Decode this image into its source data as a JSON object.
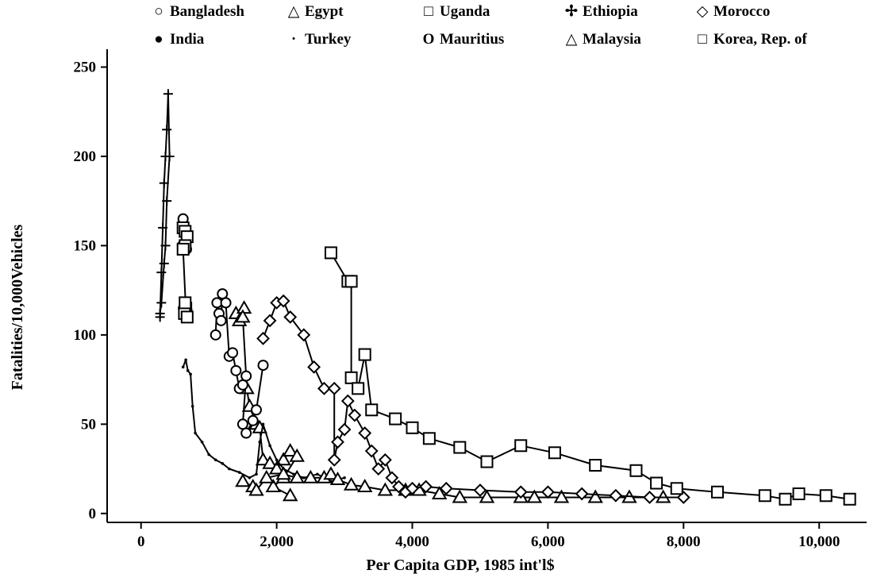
{
  "chart_data": {
    "type": "line",
    "title": "",
    "xlabel": "Per Capita GDP, 1985 int'l$",
    "ylabel": "Fatalities/10,000Vehicles",
    "xlim": [
      -500,
      10700
    ],
    "ylim": [
      -5,
      260
    ],
    "xticks": [
      0,
      2000,
      4000,
      6000,
      8000,
      10000
    ],
    "xtick_labels": [
      "0",
      "2,000",
      "4,000",
      "6,000",
      "8,000",
      "10,000"
    ],
    "yticks": [
      0,
      50,
      100,
      150,
      200,
      250
    ],
    "ytick_labels": [
      "0",
      "50",
      "100",
      "150",
      "200",
      "250"
    ],
    "grid": false,
    "legend_position": "top",
    "series": [
      {
        "name": "Bangladesh",
        "marker": "circle",
        "line": false,
        "points": [
          [
            620,
            165
          ],
          [
            640,
            160
          ],
          [
            660,
            158
          ],
          [
            610,
            150
          ],
          [
            640,
            150
          ],
          [
            670,
            148
          ]
        ]
      },
      {
        "name": "India",
        "marker": "small-circle",
        "line": false,
        "points": [
          [
            600,
            115
          ],
          [
            640,
            114
          ],
          [
            670,
            112
          ],
          [
            630,
            110
          ],
          [
            650,
            112
          ],
          [
            700,
            114
          ],
          [
            620,
            116
          ]
        ]
      },
      {
        "name": "Egypt",
        "marker": "triangle",
        "line": true,
        "points": [
          [
            1400,
            112
          ],
          [
            1450,
            108
          ],
          [
            1520,
            115
          ],
          [
            1500,
            110
          ],
          [
            1560,
            70
          ],
          [
            1600,
            60
          ],
          [
            1700,
            50
          ],
          [
            1750,
            48
          ],
          [
            1800,
            30
          ],
          [
            1900,
            28
          ],
          [
            2000,
            25
          ],
          [
            2100,
            30
          ],
          [
            2200,
            35
          ],
          [
            2300,
            32
          ],
          [
            2100,
            20
          ],
          [
            1950,
            15
          ],
          [
            2200,
            10
          ]
        ]
      },
      {
        "name": "Turkey",
        "marker": "dot",
        "line": true,
        "points": [
          [
            620,
            82
          ],
          [
            660,
            86
          ],
          [
            690,
            80
          ],
          [
            730,
            78
          ],
          [
            760,
            60
          ],
          [
            800,
            45
          ],
          [
            900,
            40
          ],
          [
            1000,
            33
          ],
          [
            1100,
            30
          ],
          [
            1200,
            28
          ],
          [
            1300,
            25
          ],
          [
            1450,
            23
          ],
          [
            1600,
            20
          ],
          [
            1700,
            22
          ],
          [
            1750,
            40
          ],
          [
            1800,
            50
          ],
          [
            1900,
            38
          ],
          [
            2000,
            30
          ],
          [
            2100,
            25
          ],
          [
            2250,
            22
          ],
          [
            2400,
            20
          ],
          [
            2600,
            22
          ],
          [
            2800,
            18
          ],
          [
            3000,
            20
          ]
        ]
      },
      {
        "name": "Uganda",
        "marker": "square",
        "line": true,
        "points": [
          [
            620,
            160
          ],
          [
            650,
            158
          ],
          [
            680,
            155
          ],
          [
            650,
            150
          ],
          [
            620,
            148
          ],
          [
            660,
            115
          ],
          [
            640,
            112
          ],
          [
            680,
            110
          ],
          [
            650,
            118
          ]
        ]
      },
      {
        "name": "Mauritius",
        "marker": "bold-circle",
        "line": true,
        "points": [
          [
            1100,
            100
          ],
          [
            1120,
            118
          ],
          [
            1150,
            112
          ],
          [
            1180,
            108
          ],
          [
            1200,
            123
          ],
          [
            1250,
            118
          ],
          [
            1300,
            88
          ],
          [
            1350,
            90
          ],
          [
            1400,
            80
          ],
          [
            1450,
            70
          ],
          [
            1500,
            72
          ],
          [
            1550,
            77
          ],
          [
            1500,
            50
          ],
          [
            1550,
            45
          ],
          [
            1650,
            52
          ],
          [
            1700,
            58
          ],
          [
            1800,
            83
          ]
        ]
      },
      {
        "name": "Ethiopia",
        "marker": "plus",
        "line": true,
        "points": [
          [
            280,
            110
          ],
          [
            300,
            135
          ],
          [
            320,
            160
          ],
          [
            340,
            185
          ],
          [
            360,
            200
          ],
          [
            380,
            215
          ],
          [
            400,
            235
          ],
          [
            420,
            200
          ],
          [
            380,
            175
          ],
          [
            360,
            150
          ],
          [
            340,
            140
          ],
          [
            300,
            118
          ],
          [
            280,
            112
          ]
        ]
      },
      {
        "name": "Malaysia",
        "marker": "triangle",
        "line": true,
        "points": [
          [
            1500,
            18
          ],
          [
            1650,
            15
          ],
          [
            1700,
            13
          ],
          [
            1850,
            20
          ],
          [
            2100,
            22
          ],
          [
            2300,
            20
          ],
          [
            2500,
            20
          ],
          [
            2700,
            20
          ],
          [
            2800,
            22
          ],
          [
            2900,
            19
          ],
          [
            3100,
            16
          ],
          [
            3300,
            15
          ],
          [
            3600,
            13
          ],
          [
            3900,
            13
          ],
          [
            4100,
            13
          ],
          [
            4400,
            11
          ],
          [
            4700,
            9
          ],
          [
            5100,
            9
          ],
          [
            5600,
            9
          ],
          [
            5800,
            9
          ],
          [
            6200,
            9
          ],
          [
            6700,
            9
          ],
          [
            7200,
            9
          ],
          [
            7700,
            9
          ]
        ]
      },
      {
        "name": "Morocco",
        "marker": "diamond",
        "line": true,
        "points": [
          [
            1800,
            98
          ],
          [
            1900,
            108
          ],
          [
            2000,
            118
          ],
          [
            2100,
            119
          ],
          [
            2200,
            110
          ],
          [
            2400,
            100
          ],
          [
            2550,
            82
          ],
          [
            2700,
            70
          ],
          [
            2850,
            70
          ],
          [
            2850,
            30
          ],
          [
            2900,
            40
          ],
          [
            3000,
            47
          ],
          [
            3050,
            63
          ],
          [
            3150,
            55
          ],
          [
            3300,
            45
          ],
          [
            3400,
            35
          ],
          [
            3500,
            25
          ],
          [
            3600,
            30
          ],
          [
            3700,
            20
          ],
          [
            3800,
            15
          ],
          [
            3900,
            12
          ],
          [
            4000,
            14
          ],
          [
            4200,
            15
          ],
          [
            4500,
            14
          ],
          [
            5000,
            13
          ],
          [
            5600,
            12
          ],
          [
            6000,
            12
          ],
          [
            6500,
            11
          ],
          [
            7000,
            10
          ],
          [
            7500,
            9
          ],
          [
            8000,
            9
          ]
        ]
      },
      {
        "name": "Korea, Rep. of",
        "marker": "square",
        "line": true,
        "points": [
          [
            2800,
            146
          ],
          [
            3050,
            130
          ],
          [
            3100,
            130
          ],
          [
            3100,
            76
          ],
          [
            3200,
            70
          ],
          [
            3300,
            89
          ],
          [
            3400,
            58
          ],
          [
            3750,
            53
          ],
          [
            4000,
            48
          ],
          [
            4250,
            42
          ],
          [
            4700,
            37
          ],
          [
            5100,
            29
          ],
          [
            5600,
            38
          ],
          [
            6100,
            34
          ],
          [
            6700,
            27
          ],
          [
            7300,
            24
          ],
          [
            7600,
            17
          ],
          [
            7900,
            14
          ],
          [
            8500,
            12
          ],
          [
            9200,
            10
          ],
          [
            9500,
            8
          ],
          [
            9700,
            11
          ],
          [
            10100,
            10
          ],
          [
            10450,
            8
          ]
        ]
      }
    ]
  },
  "legend": [
    {
      "label": "Bangladesh",
      "symbol": "○"
    },
    {
      "label": "Egypt",
      "symbol": "△"
    },
    {
      "label": "Uganda",
      "symbol": "□"
    },
    {
      "label": "Ethiopia",
      "symbol": "✢"
    },
    {
      "label": "Morocco",
      "symbol": "◇"
    },
    {
      "label": "India",
      "symbol": "●"
    },
    {
      "label": "Turkey",
      "symbol": "·"
    },
    {
      "label": "Mauritius",
      "symbol": "O"
    },
    {
      "label": "Malaysia",
      "symbol": "△"
    },
    {
      "label": "Korea, Rep. of",
      "symbol": "□"
    }
  ]
}
